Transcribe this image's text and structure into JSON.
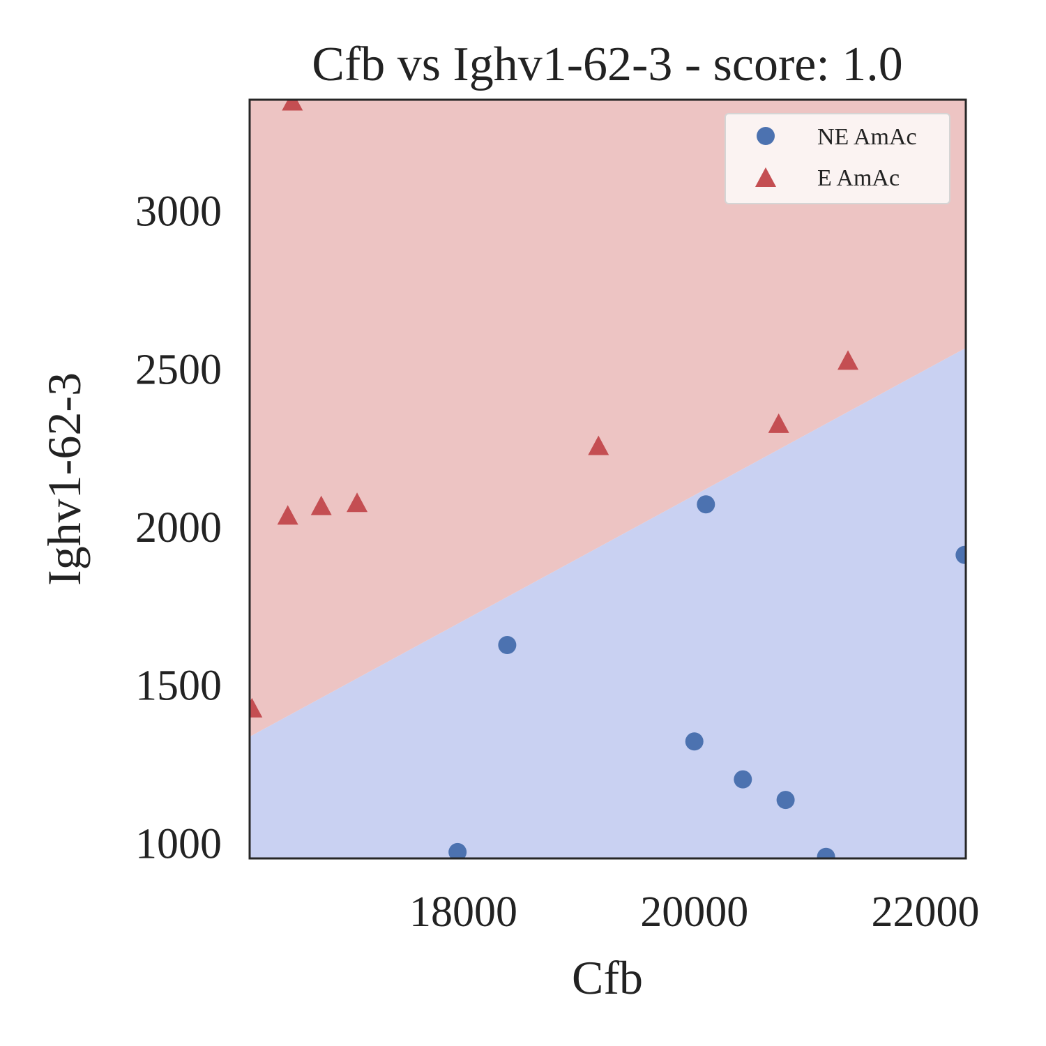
{
  "chart_data": {
    "type": "scatter",
    "title": "Cfb vs Ighv1-62-3 - score: 1.0",
    "xlabel": "Cfb",
    "ylabel": "Ighv1-62-3",
    "xlim": [
      16150,
      22350
    ],
    "ylim": [
      950,
      3350
    ],
    "xticks": [
      "18000",
      "20000",
      "22000"
    ],
    "xtick_values": [
      18000,
      20000,
      22000
    ],
    "yticks": [
      "1000",
      "1500",
      "2000",
      "2500",
      "3000"
    ],
    "ytick_values": [
      1000,
      1500,
      2000,
      2500,
      3000
    ],
    "grid": false,
    "legend_position": "top-right",
    "decision_boundary": {
      "x": [
        16150,
        22350
      ],
      "y": [
        1335,
        2565
      ],
      "above_label": "E AmAc",
      "below_label": "NE AmAc",
      "above_color": "#edc4c3",
      "below_color": "#c9d1f2"
    },
    "series": [
      {
        "name": "NE AmAc",
        "marker": "circle",
        "color": "#4c72b0",
        "points": [
          {
            "x": 17950,
            "y": 970
          },
          {
            "x": 18380,
            "y": 1625
          },
          {
            "x": 20000,
            "y": 1320
          },
          {
            "x": 20100,
            "y": 2070
          },
          {
            "x": 20420,
            "y": 1200
          },
          {
            "x": 20790,
            "y": 1135
          },
          {
            "x": 21140,
            "y": 955
          },
          {
            "x": 22340,
            "y": 1910
          }
        ]
      },
      {
        "name": "E AmAc",
        "marker": "triangle",
        "color": "#c44e52",
        "points": [
          {
            "x": 16170,
            "y": 1420
          },
          {
            "x": 16480,
            "y": 2030
          },
          {
            "x": 16520,
            "y": 3340
          },
          {
            "x": 16770,
            "y": 2060
          },
          {
            "x": 17080,
            "y": 2070
          },
          {
            "x": 19170,
            "y": 2250
          },
          {
            "x": 20730,
            "y": 2320
          },
          {
            "x": 21330,
            "y": 2520
          }
        ]
      }
    ]
  }
}
